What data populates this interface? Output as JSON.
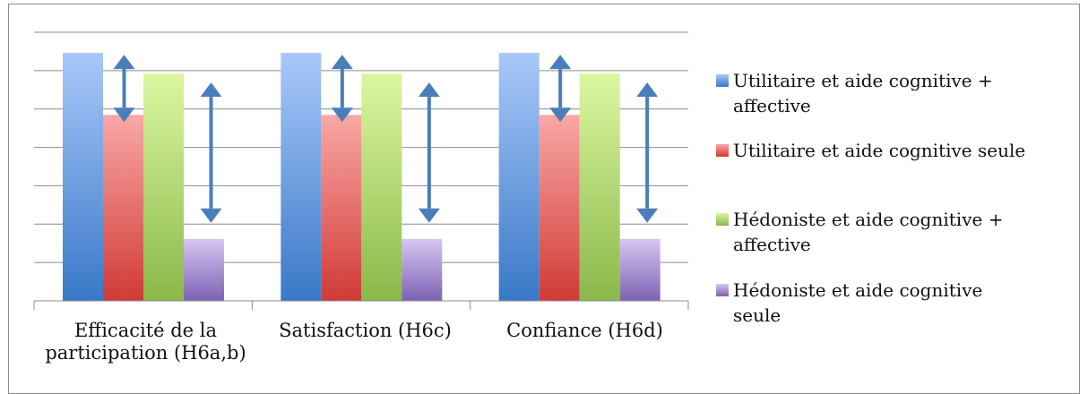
{
  "chart_data": {
    "type": "bar",
    "title": "",
    "xlabel": "",
    "ylabel": "",
    "ylim": [
      0,
      6.5
    ],
    "grid": true,
    "legend_position": "right",
    "categories": [
      "Efficacité de la participation (H6a,b)",
      "Satisfaction (H6c)",
      "Confiance (H6d)"
    ],
    "series": [
      {
        "name": "Utilitaire et aide cognitive + affective",
        "color": "#4f81bd",
        "values": [
          6,
          6,
          6
        ]
      },
      {
        "name": "Utilitaire et aide cognitive seule",
        "color": "#e05a57",
        "values": [
          4.5,
          4.5,
          4.5
        ]
      },
      {
        "name": "Hédoniste et aide cognitive + affective",
        "color": "#9bbb59",
        "values": [
          5.5,
          5.5,
          5.5
        ]
      },
      {
        "name": "Hédoniste et aide cognitive seule",
        "color": "#8064a2",
        "values": [
          1.5,
          1.5,
          1.5
        ]
      }
    ],
    "annotations": [
      {
        "type": "double-arrow",
        "between_series": [
          0,
          1
        ],
        "color": "#4a7ebb"
      },
      {
        "type": "double-arrow",
        "between_series": [
          2,
          3
        ],
        "color": "#4a7ebb"
      }
    ]
  },
  "category_labels": [
    {
      "line1": "Efficacité de la",
      "line2": "participation (H6a,b)"
    },
    {
      "line1": "Satisfaction (H6c)",
      "line2": ""
    },
    {
      "line1": "Confiance (H6d)",
      "line2": ""
    }
  ],
  "legend": [
    {
      "line1": "Utilitaire et aide cognitive +",
      "line2": "affective"
    },
    {
      "line1": "Utilitaire et aide cognitive seule",
      "line2": ""
    },
    {
      "line1": "Hédoniste et aide cognitive +",
      "line2": "affective"
    },
    {
      "line1": "Hédoniste et aide cognitive",
      "line2": "seule"
    }
  ]
}
